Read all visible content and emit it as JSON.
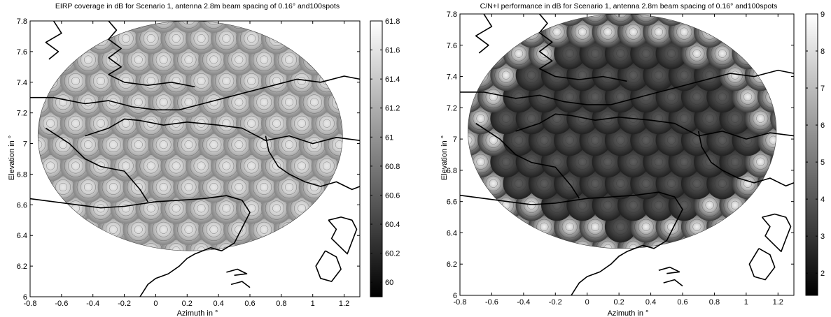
{
  "chart_data": [
    {
      "type": "heatmap",
      "title": "EIRP coverage in dB for Scenario 1, antenna 2.8m beam spacing of 0.16° and100spots",
      "xlabel": "Azimuth in °",
      "ylabel": "Elevation in °",
      "xlim": [
        -0.8,
        1.3
      ],
      "ylim": [
        6.0,
        7.8
      ],
      "xticks": [
        "-0.8",
        "-0.6",
        "-0.4",
        "-0.2",
        "0",
        "0.2",
        "0.4",
        "0.6",
        "0.8",
        "1",
        "1.2"
      ],
      "yticks": [
        "6",
        "6.2",
        "6.4",
        "6.6",
        "6.8",
        "7",
        "7.2",
        "7.4",
        "7.6",
        "7.8"
      ],
      "colorbar": {
        "min": 59.9,
        "max": 61.8,
        "ticks": [
          "60",
          "60.2",
          "60.4",
          "60.6",
          "60.8",
          "61",
          "61.2",
          "61.4",
          "61.6",
          "61.8"
        ]
      },
      "coverage": {
        "center_x": 0.22,
        "center_y": 7.05,
        "half_width": 0.97,
        "half_height": 0.75,
        "spots": 100,
        "beam_spacing": 0.16
      },
      "peak_value": 61.7,
      "edge_value": 60.6,
      "beam_style": "light"
    },
    {
      "type": "heatmap",
      "title": "C/N+I performance in dB for Scenario 1, antenna 2.8m beam spacing of 0.16° and100spots",
      "xlabel": "Azimuth in °",
      "ylabel": "Elevation in °",
      "xlim": [
        -0.8,
        1.3
      ],
      "ylim": [
        6.0,
        7.8
      ],
      "xticks": [
        "-0.8",
        "-0.6",
        "-0.4",
        "-0.2",
        "0",
        "0.2",
        "0.4",
        "0.6",
        "0.8",
        "1",
        "1.2"
      ],
      "yticks": [
        "6",
        "6.2",
        "6.4",
        "6.6",
        "6.8",
        "7",
        "7.2",
        "7.4",
        "7.6",
        "7.8"
      ],
      "colorbar": {
        "min": 1.4,
        "max": 9.0,
        "ticks": [
          "2",
          "3",
          "4",
          "5",
          "6",
          "7",
          "8",
          "9"
        ]
      },
      "coverage": {
        "center_x": 0.22,
        "center_y": 7.05,
        "half_width": 0.97,
        "half_height": 0.75,
        "spots": 100,
        "beam_spacing": 0.16
      },
      "peak_value": 3.6,
      "edge_value": 1.8,
      "beam_style": "dark"
    }
  ]
}
